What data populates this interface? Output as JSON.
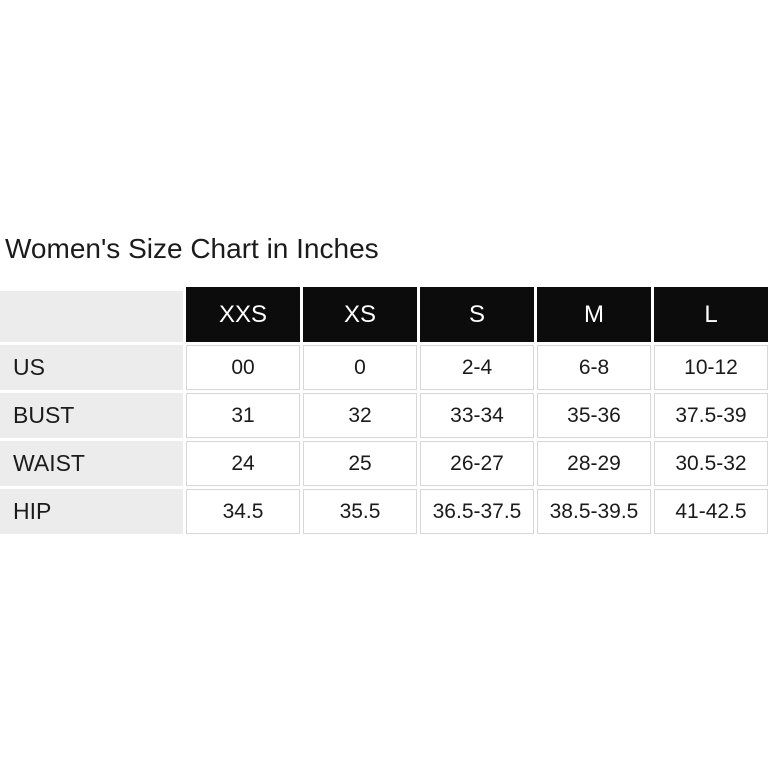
{
  "title": "Women's Size Chart in Inches",
  "chart_data": {
    "type": "table",
    "title": "Women's Size Chart in Inches",
    "columns": [
      "XXS",
      "XS",
      "S",
      "M",
      "L"
    ],
    "rows": [
      {
        "label": "US",
        "values": [
          "00",
          "0",
          "2-4",
          "6-8",
          "10-12"
        ]
      },
      {
        "label": "BUST",
        "values": [
          "31",
          "32",
          "33-34",
          "35-36",
          "37.5-39"
        ]
      },
      {
        "label": "WAIST",
        "values": [
          "24",
          "25",
          "26-27",
          "28-29",
          "30.5-32"
        ]
      },
      {
        "label": "HIP",
        "values": [
          "34.5",
          "35.5",
          "36.5-37.5",
          "38.5-39.5",
          "41-42.5"
        ]
      }
    ],
    "layout": {
      "column_headers_position": "top",
      "row_headers_position": "left",
      "grid": "white gaps between cells, light gray borders on data cells"
    }
  },
  "colors": {
    "header_bg": "#0c0c0c",
    "header_text": "#ffffff",
    "row_label_bg": "#ececec",
    "data_cell_bg": "#ffffff",
    "cell_border": "#d7d7d7",
    "text": "#1b1b1b",
    "background": "#ffffff"
  }
}
